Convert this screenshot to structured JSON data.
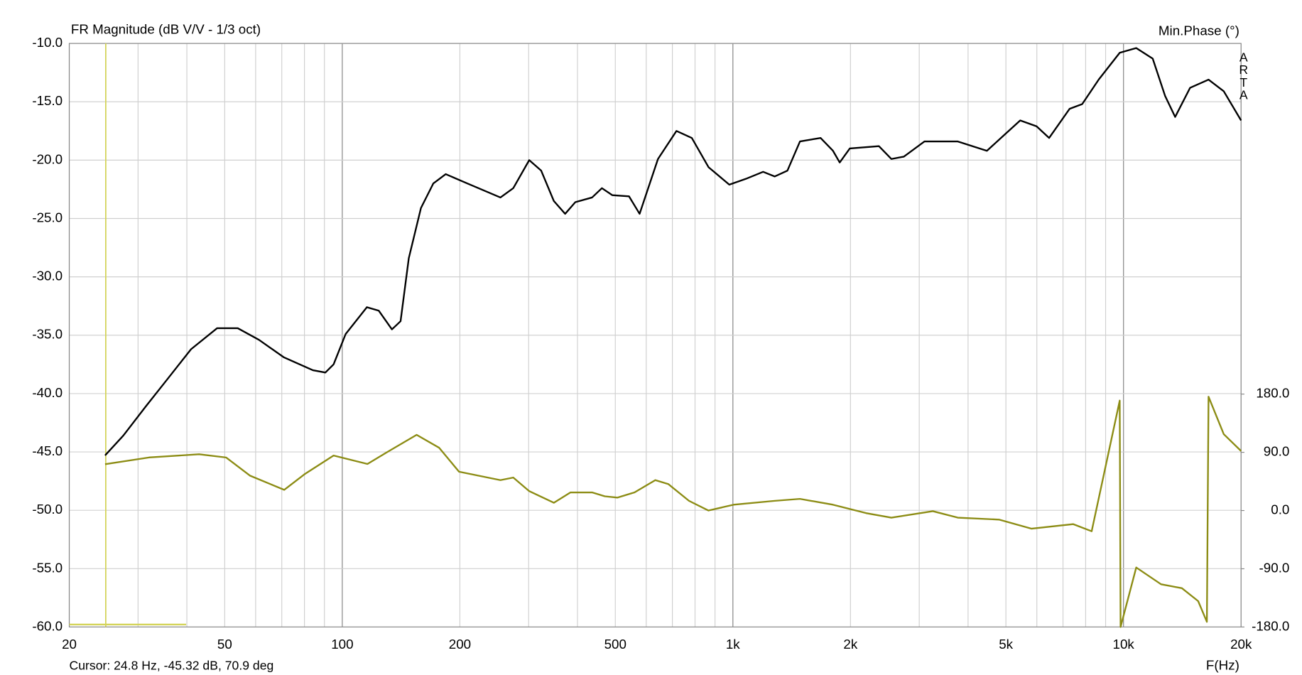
{
  "chart_data": {
    "type": "line",
    "title": "FR Magnitude (dB V/V - 1/3 oct)",
    "y2_title": "Min.Phase (°)",
    "x_label": "F(Hz)",
    "watermark": "ARTA",
    "log_x": true,
    "grid": true,
    "xlim": [
      20,
      20000
    ],
    "xticks": [
      20,
      50,
      100,
      200,
      500,
      {
        "value": 1000,
        "label": "1k"
      },
      {
        "value": 2000,
        "label": "2k"
      },
      {
        "value": 5000,
        "label": "5k"
      },
      {
        "value": 10000,
        "label": "10k"
      },
      {
        "value": 20000,
        "label": "20k"
      }
    ],
    "xmajorticks": [
      100,
      1000,
      10000
    ],
    "xminorticks": [
      30,
      40,
      60,
      70,
      80,
      90,
      300,
      400,
      600,
      700,
      800,
      900,
      3000,
      4000,
      6000,
      7000,
      8000,
      9000
    ],
    "ylim": [
      -60,
      -10
    ],
    "yticks": [
      {
        "value": -10,
        "label": "-10.0"
      },
      {
        "value": -15,
        "label": "-15.0"
      },
      {
        "value": -20,
        "label": "-20.0"
      },
      {
        "value": -25,
        "label": "-25.0"
      },
      {
        "value": -30,
        "label": "-30.0"
      },
      {
        "value": -35,
        "label": "-35.0"
      },
      {
        "value": -40,
        "label": "-40.0"
      },
      {
        "value": -45,
        "label": "-45.0"
      },
      {
        "value": -50,
        "label": "-50.0"
      },
      {
        "value": -55,
        "label": "-55.0"
      },
      {
        "value": -60,
        "label": "-60.0"
      }
    ],
    "y2lim": [
      -180,
      722
    ],
    "y2ticks": [
      {
        "value": 180,
        "label": "180.0"
      },
      {
        "value": 90,
        "label": "90.0"
      },
      {
        "value": 0,
        "label": "0.0"
      },
      {
        "value": -90,
        "label": "-90.0"
      },
      {
        "value": -180,
        "label": "-180.0"
      }
    ],
    "cursor": {
      "x": 24.8,
      "color": "#d4d45a",
      "label": "Cursor: 24.8 Hz, -45.32 dB, 70.9 deg"
    },
    "series": [
      {
        "color": "#000000",
        "x": [
          24.7,
          27.5,
          31.4,
          35.6,
          41.0,
          47.8,
          54.0,
          61.2,
          70.9,
          84.1,
          90.5,
          95.0,
          102,
          115.6,
          124,
          134,
          141,
          148,
          159,
          171,
          184,
          209,
          254,
          274,
          301,
          323,
          348,
          372,
          395,
          436,
          462,
          491,
          542,
          577,
          643,
          717,
          785,
          866,
          979,
          1080,
          1195,
          1280,
          1379,
          1485,
          1677,
          1804,
          1877,
          1992,
          2365,
          2545,
          2740,
          3094,
          3765,
          4470,
          4930,
          5440,
          5990,
          6450,
          7280,
          7840,
          8640,
          9780,
          10780,
          11880,
          12780,
          13560,
          14810,
          16510,
          18060,
          20000
        ],
        "values": [
          -45.3,
          -43.6,
          -41.1,
          -38.8,
          -36.2,
          -34.4,
          -34.4,
          -35.4,
          -36.9,
          -38.0,
          -38.2,
          -37.5,
          -34.9,
          -32.6,
          -32.9,
          -34.5,
          -33.8,
          -28.4,
          -24.1,
          -22.0,
          -21.2,
          -22.0,
          -23.2,
          -22.4,
          -20.0,
          -20.9,
          -23.5,
          -24.6,
          -23.6,
          -23.2,
          -22.4,
          -23.0,
          -23.1,
          -24.6,
          -19.9,
          -17.5,
          -18.1,
          -20.6,
          -22.1,
          -21.6,
          -21.0,
          -21.4,
          -20.9,
          -18.4,
          -18.1,
          -19.2,
          -20.2,
          -19.0,
          -18.8,
          -19.9,
          -19.7,
          -18.4,
          -18.4,
          -19.2,
          -17.9,
          -16.6,
          -17.1,
          -18.1,
          -15.6,
          -15.2,
          -13.1,
          -10.8,
          -10.4,
          -11.3,
          -14.5,
          -16.3,
          -13.8,
          -13.1,
          -14.1,
          -16.6
        ]
      },
      {
        "color": "#8c8c14",
        "axis": "y2",
        "x": [
          24.7,
          32,
          43,
          50.4,
          58,
          71,
          80,
          95,
          116,
          130,
          155,
          177,
          199,
          254,
          274,
          301,
          348,
          384,
          436,
          470,
          506,
          560,
          633,
          683,
          772,
          866,
          1004,
          1280,
          1485,
          1804,
          2193,
          2545,
          3250,
          3765,
          4800,
          5810,
          7430,
          8290,
          9780,
          9830,
          10780,
          12480,
          14110,
          15530,
          16350,
          16510,
          18060,
          20000
        ],
        "values": [
          71.6,
          82,
          87,
          82,
          54,
          32,
          56,
          85,
          72,
          90,
          117,
          97,
          60,
          47,
          51,
          30,
          12,
          28,
          28,
          22,
          20,
          28,
          47,
          41,
          15,
          0,
          9,
          15,
          18,
          9,
          -4,
          -11,
          -1,
          -11,
          -14,
          -28,
          -21,
          -32,
          170,
          -180,
          -88,
          -114,
          -120,
          -140,
          -172,
          176,
          118,
          92
        ]
      }
    ]
  }
}
